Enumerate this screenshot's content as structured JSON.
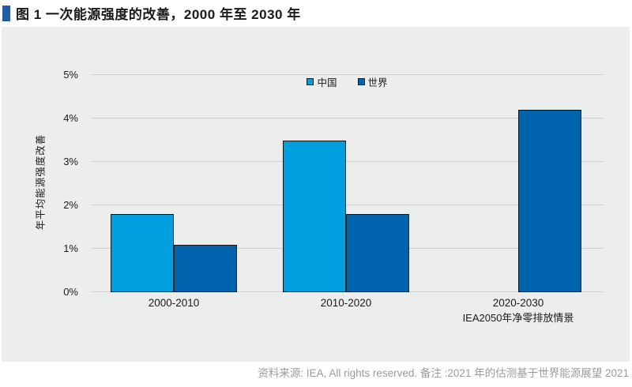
{
  "page": {
    "title": "图 1 一次能源强度的改善，2000 年至 2030 年",
    "source_note": "资料来源: IEA, All rights reserved. 备注 :2021 年的估测基于世界能源展望 2021"
  },
  "colors": {
    "title_marker": "#1E5CA8",
    "panel_bg": "#ECEDED",
    "gridline": "#CFCFCF",
    "china": "#009FE0",
    "world": "#0063AD",
    "bar_border": "#141414",
    "source_text": "#9B9B9B"
  },
  "chart_data": {
    "type": "bar",
    "title": "图 1 一次能源强度的改善，2000 年至 2030 年",
    "xlabel": "",
    "ylabel": "年平均能源强度改善",
    "unit": "%",
    "categories": [
      "2000-2010",
      "2010-2020",
      "2020-2030"
    ],
    "category_sublabels": [
      "",
      "",
      "IEA2050年净零排放情景"
    ],
    "series": [
      {
        "name": "中国",
        "key": "china",
        "values": [
          1.8,
          3.5,
          null
        ]
      },
      {
        "name": "世界",
        "key": "world",
        "values": [
          1.1,
          1.8,
          4.2
        ]
      }
    ],
    "ylim": [
      0,
      5
    ],
    "ytick_labels": [
      "0%",
      "1%",
      "2%",
      "3%",
      "4%",
      "5%"
    ],
    "grid": true,
    "legend_position": "top-center"
  }
}
